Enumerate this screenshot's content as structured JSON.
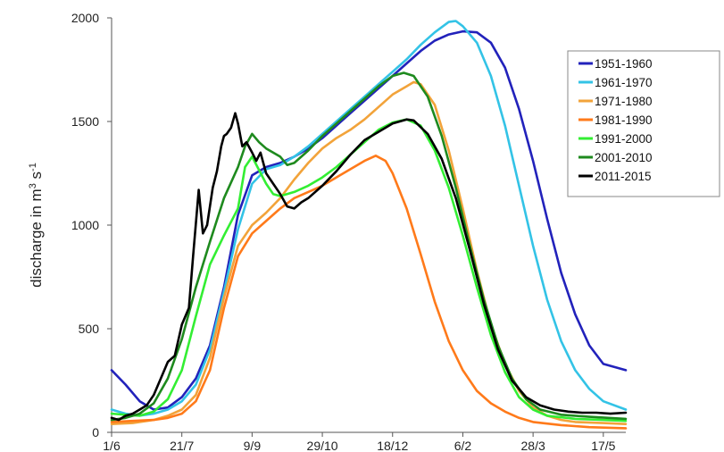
{
  "chart_data": {
    "type": "line",
    "ylabel": "discharge in m³ s⁻¹",
    "ylabel_parts": {
      "main": "discharge in m",
      "sup1": "3",
      "mid": " s",
      "sup2": "-1"
    },
    "xlabel": "",
    "x_tick_labels": [
      "1/6",
      "21/7",
      "9/9",
      "29/10",
      "18/12",
      "6/2",
      "28/3",
      "17/5"
    ],
    "x_tick_days": [
      0,
      50,
      100,
      150,
      200,
      250,
      300,
      350
    ],
    "xlim": [
      0,
      366
    ],
    "ylim": [
      0,
      2000
    ],
    "y_ticks": [
      0,
      500,
      1000,
      1500,
      2000
    ],
    "grid": false,
    "legend_position": "top-right",
    "x_units": "days since 1 June",
    "series": [
      {
        "name": "1951-1960",
        "color": "#2222bb",
        "points": [
          [
            0,
            300
          ],
          [
            10,
            230
          ],
          [
            20,
            150
          ],
          [
            30,
            110
          ],
          [
            40,
            120
          ],
          [
            50,
            170
          ],
          [
            60,
            260
          ],
          [
            70,
            420
          ],
          [
            80,
            700
          ],
          [
            90,
            1050
          ],
          [
            100,
            1240
          ],
          [
            110,
            1280
          ],
          [
            120,
            1300
          ],
          [
            130,
            1330
          ],
          [
            140,
            1370
          ],
          [
            150,
            1420
          ],
          [
            160,
            1480
          ],
          [
            170,
            1540
          ],
          [
            180,
            1600
          ],
          [
            190,
            1660
          ],
          [
            200,
            1720
          ],
          [
            210,
            1780
          ],
          [
            220,
            1840
          ],
          [
            230,
            1890
          ],
          [
            240,
            1920
          ],
          [
            250,
            1935
          ],
          [
            260,
            1930
          ],
          [
            270,
            1880
          ],
          [
            280,
            1760
          ],
          [
            290,
            1560
          ],
          [
            300,
            1310
          ],
          [
            310,
            1030
          ],
          [
            320,
            770
          ],
          [
            330,
            570
          ],
          [
            340,
            420
          ],
          [
            350,
            330
          ],
          [
            366,
            300
          ]
        ]
      },
      {
        "name": "1961-1970",
        "color": "#33c3e6",
        "points": [
          [
            0,
            110
          ],
          [
            10,
            90
          ],
          [
            20,
            80
          ],
          [
            30,
            90
          ],
          [
            40,
            110
          ],
          [
            50,
            150
          ],
          [
            60,
            230
          ],
          [
            70,
            400
          ],
          [
            80,
            680
          ],
          [
            90,
            980
          ],
          [
            100,
            1200
          ],
          [
            110,
            1270
          ],
          [
            120,
            1290
          ],
          [
            130,
            1330
          ],
          [
            140,
            1380
          ],
          [
            150,
            1440
          ],
          [
            160,
            1500
          ],
          [
            170,
            1560
          ],
          [
            180,
            1620
          ],
          [
            190,
            1680
          ],
          [
            200,
            1740
          ],
          [
            210,
            1800
          ],
          [
            220,
            1870
          ],
          [
            230,
            1930
          ],
          [
            240,
            1980
          ],
          [
            245,
            1985
          ],
          [
            250,
            1960
          ],
          [
            260,
            1880
          ],
          [
            270,
            1720
          ],
          [
            280,
            1480
          ],
          [
            290,
            1190
          ],
          [
            300,
            900
          ],
          [
            310,
            640
          ],
          [
            320,
            440
          ],
          [
            330,
            300
          ],
          [
            340,
            210
          ],
          [
            350,
            150
          ],
          [
            366,
            110
          ]
        ]
      },
      {
        "name": "1971-1980",
        "color": "#f2a33a",
        "points": [
          [
            0,
            40
          ],
          [
            15,
            45
          ],
          [
            30,
            60
          ],
          [
            40,
            80
          ],
          [
            50,
            110
          ],
          [
            60,
            180
          ],
          [
            70,
            360
          ],
          [
            80,
            650
          ],
          [
            90,
            900
          ],
          [
            100,
            1000
          ],
          [
            110,
            1060
          ],
          [
            120,
            1130
          ],
          [
            130,
            1220
          ],
          [
            140,
            1300
          ],
          [
            150,
            1370
          ],
          [
            160,
            1420
          ],
          [
            170,
            1460
          ],
          [
            180,
            1510
          ],
          [
            190,
            1570
          ],
          [
            200,
            1630
          ],
          [
            210,
            1670
          ],
          [
            215,
            1690
          ],
          [
            220,
            1680
          ],
          [
            230,
            1580
          ],
          [
            240,
            1360
          ],
          [
            250,
            1080
          ],
          [
            260,
            780
          ],
          [
            270,
            520
          ],
          [
            280,
            330
          ],
          [
            290,
            200
          ],
          [
            300,
            120
          ],
          [
            310,
            80
          ],
          [
            320,
            60
          ],
          [
            330,
            50
          ],
          [
            350,
            45
          ],
          [
            366,
            40
          ]
        ]
      },
      {
        "name": "1981-1990",
        "color": "#ff7a1a",
        "points": [
          [
            0,
            50
          ],
          [
            15,
            55
          ],
          [
            30,
            60
          ],
          [
            40,
            70
          ],
          [
            50,
            90
          ],
          [
            60,
            150
          ],
          [
            70,
            300
          ],
          [
            80,
            600
          ],
          [
            90,
            850
          ],
          [
            100,
            960
          ],
          [
            110,
            1020
          ],
          [
            120,
            1080
          ],
          [
            130,
            1130
          ],
          [
            140,
            1160
          ],
          [
            150,
            1190
          ],
          [
            160,
            1230
          ],
          [
            170,
            1270
          ],
          [
            180,
            1310
          ],
          [
            188,
            1335
          ],
          [
            195,
            1310
          ],
          [
            200,
            1250
          ],
          [
            210,
            1080
          ],
          [
            220,
            860
          ],
          [
            230,
            630
          ],
          [
            240,
            440
          ],
          [
            250,
            300
          ],
          [
            260,
            200
          ],
          [
            270,
            140
          ],
          [
            280,
            100
          ],
          [
            290,
            70
          ],
          [
            300,
            50
          ],
          [
            320,
            35
          ],
          [
            340,
            25
          ],
          [
            366,
            20
          ]
        ]
      },
      {
        "name": "1991-2000",
        "color": "#33ee33",
        "points": [
          [
            0,
            90
          ],
          [
            10,
            85
          ],
          [
            20,
            80
          ],
          [
            30,
            100
          ],
          [
            40,
            160
          ],
          [
            50,
            300
          ],
          [
            60,
            560
          ],
          [
            70,
            810
          ],
          [
            80,
            950
          ],
          [
            90,
            1080
          ],
          [
            95,
            1280
          ],
          [
            100,
            1330
          ],
          [
            110,
            1200
          ],
          [
            115,
            1150
          ],
          [
            120,
            1140
          ],
          [
            130,
            1160
          ],
          [
            140,
            1190
          ],
          [
            150,
            1230
          ],
          [
            160,
            1280
          ],
          [
            170,
            1340
          ],
          [
            180,
            1400
          ],
          [
            190,
            1460
          ],
          [
            200,
            1495
          ],
          [
            210,
            1510
          ],
          [
            220,
            1480
          ],
          [
            230,
            1360
          ],
          [
            240,
            1180
          ],
          [
            250,
            950
          ],
          [
            260,
            700
          ],
          [
            270,
            470
          ],
          [
            280,
            290
          ],
          [
            290,
            170
          ],
          [
            300,
            110
          ],
          [
            310,
            80
          ],
          [
            330,
            65
          ],
          [
            350,
            60
          ],
          [
            366,
            55
          ]
        ]
      },
      {
        "name": "2001-2010",
        "color": "#1e8a1e",
        "points": [
          [
            0,
            60
          ],
          [
            10,
            70
          ],
          [
            20,
            90
          ],
          [
            30,
            140
          ],
          [
            40,
            260
          ],
          [
            50,
            450
          ],
          [
            60,
            700
          ],
          [
            70,
            920
          ],
          [
            80,
            1130
          ],
          [
            90,
            1280
          ],
          [
            95,
            1380
          ],
          [
            100,
            1440
          ],
          [
            105,
            1400
          ],
          [
            110,
            1370
          ],
          [
            120,
            1330
          ],
          [
            125,
            1290
          ],
          [
            130,
            1300
          ],
          [
            140,
            1360
          ],
          [
            150,
            1430
          ],
          [
            160,
            1490
          ],
          [
            170,
            1550
          ],
          [
            180,
            1610
          ],
          [
            190,
            1670
          ],
          [
            200,
            1720
          ],
          [
            208,
            1735
          ],
          [
            215,
            1720
          ],
          [
            225,
            1620
          ],
          [
            235,
            1430
          ],
          [
            245,
            1180
          ],
          [
            255,
            900
          ],
          [
            265,
            640
          ],
          [
            275,
            420
          ],
          [
            285,
            260
          ],
          [
            295,
            160
          ],
          [
            305,
            110
          ],
          [
            320,
            85
          ],
          [
            340,
            75
          ],
          [
            366,
            65
          ]
        ]
      },
      {
        "name": "2011-2015",
        "color": "#000000",
        "points": [
          [
            0,
            70
          ],
          [
            5,
            60
          ],
          [
            10,
            80
          ],
          [
            15,
            90
          ],
          [
            20,
            110
          ],
          [
            25,
            130
          ],
          [
            30,
            180
          ],
          [
            35,
            260
          ],
          [
            40,
            340
          ],
          [
            45,
            370
          ],
          [
            50,
            520
          ],
          [
            55,
            600
          ],
          [
            58,
            850
          ],
          [
            62,
            1170
          ],
          [
            65,
            960
          ],
          [
            68,
            1000
          ],
          [
            72,
            1180
          ],
          [
            75,
            1260
          ],
          [
            78,
            1380
          ],
          [
            80,
            1430
          ],
          [
            82,
            1440
          ],
          [
            85,
            1470
          ],
          [
            88,
            1540
          ],
          [
            90,
            1490
          ],
          [
            93,
            1380
          ],
          [
            96,
            1400
          ],
          [
            100,
            1350
          ],
          [
            103,
            1310
          ],
          [
            106,
            1350
          ],
          [
            110,
            1250
          ],
          [
            115,
            1200
          ],
          [
            120,
            1150
          ],
          [
            125,
            1090
          ],
          [
            130,
            1080
          ],
          [
            135,
            1110
          ],
          [
            140,
            1130
          ],
          [
            150,
            1190
          ],
          [
            160,
            1260
          ],
          [
            170,
            1340
          ],
          [
            180,
            1410
          ],
          [
            190,
            1450
          ],
          [
            200,
            1490
          ],
          [
            210,
            1510
          ],
          [
            215,
            1505
          ],
          [
            225,
            1440
          ],
          [
            235,
            1320
          ],
          [
            245,
            1130
          ],
          [
            255,
            880
          ],
          [
            265,
            620
          ],
          [
            275,
            400
          ],
          [
            285,
            250
          ],
          [
            295,
            170
          ],
          [
            305,
            130
          ],
          [
            315,
            110
          ],
          [
            325,
            100
          ],
          [
            335,
            95
          ],
          [
            345,
            95
          ],
          [
            355,
            90
          ],
          [
            366,
            95
          ]
        ]
      }
    ]
  }
}
